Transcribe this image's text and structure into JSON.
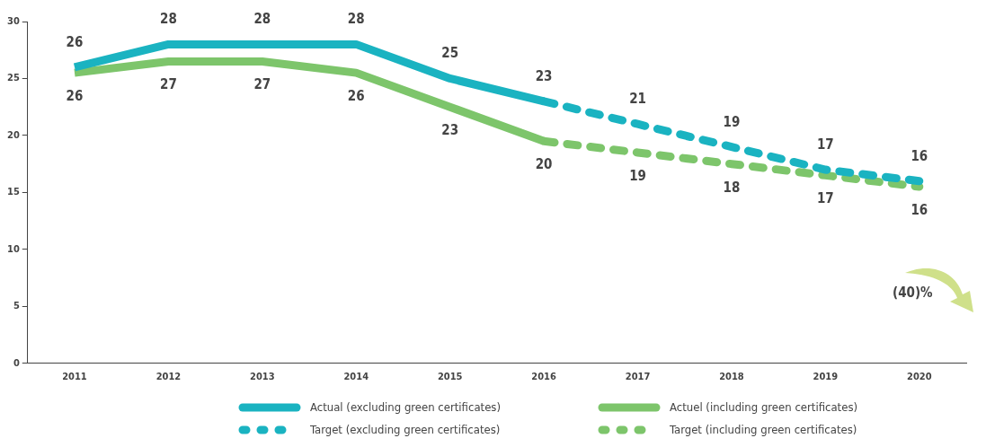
{
  "chart_data": {
    "type": "line",
    "categories": [
      "2011",
      "2012",
      "2013",
      "2014",
      "2015",
      "2016",
      "2017",
      "2018",
      "2019",
      "2020"
    ],
    "series": [
      {
        "name": "Actual (excluding green certificates)",
        "color": "#1ab3c1",
        "line_style": "solid",
        "values": [
          26,
          28,
          28,
          28,
          25,
          23,
          null,
          null,
          null,
          null
        ],
        "value_labels": [
          "26",
          "28",
          "28",
          "28",
          "25",
          "23",
          null,
          null,
          null,
          null
        ]
      },
      {
        "name": "Target (excluding green certificates)",
        "color": "#1ab3c1",
        "line_style": "dashed",
        "values": [
          null,
          null,
          null,
          null,
          null,
          23,
          21,
          19,
          17,
          16
        ],
        "value_labels": [
          null,
          null,
          null,
          null,
          null,
          null,
          "21",
          "19",
          "17",
          "16"
        ]
      },
      {
        "name": "Actuel (including green certificates)",
        "color": "#7dc56b",
        "line_style": "solid",
        "values": [
          25.5,
          26.5,
          26.5,
          25.5,
          22.5,
          19.5,
          null,
          null,
          null,
          null
        ],
        "value_labels": [
          "26",
          "27",
          "27",
          "26",
          "23",
          "20",
          null,
          null,
          null,
          null
        ]
      },
      {
        "name": "Target (including green certificates)",
        "color": "#7dc56b",
        "line_style": "dashed",
        "values": [
          null,
          null,
          null,
          null,
          null,
          19.5,
          18.5,
          17.5,
          16.5,
          15.5
        ],
        "value_labels": [
          null,
          null,
          null,
          null,
          null,
          null,
          "19",
          "18",
          "17",
          "16"
        ]
      }
    ],
    "ylim": [
      0,
      30
    ],
    "yticks": [
      0,
      5,
      10,
      15,
      20,
      25,
      30
    ],
    "grid": false,
    "legend": "bottom",
    "marker": "none",
    "annotations": [
      "(40)%"
    ]
  }
}
